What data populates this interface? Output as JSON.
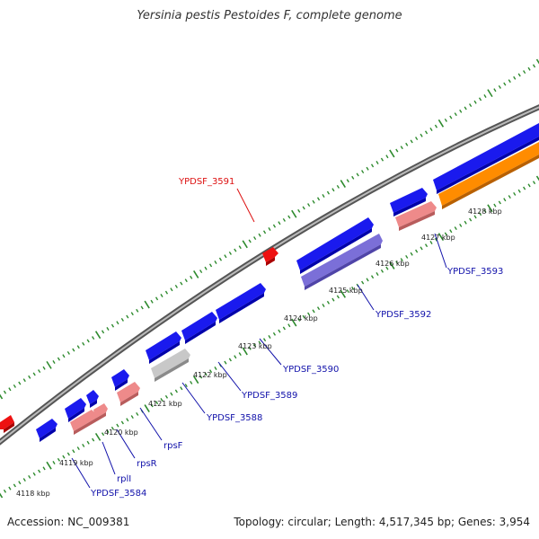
{
  "title": "Yersinia pestis Pestoides F, complete genome",
  "footer": {
    "accession": "Accession: NC_009381",
    "summary": "Topology: circular; Length: 4,517,345 bp; Genes: 3,954"
  },
  "colors": {
    "backbone": "#7a7a7a",
    "cds_forward": "#1a1aee",
    "cds_reverse": "#ee8a8a",
    "rna": "#ff8c00",
    "pseudogene": "#c8c8c8",
    "hypothetical": "#7b6fd8",
    "highlight": "#ee1111",
    "tick": "#2d8a2d",
    "label_blue": "#1111aa",
    "label_red": "#dd1111"
  },
  "ticks": [
    {
      "label": "4118 kbp"
    },
    {
      "label": "4119 kbp"
    },
    {
      "label": "4120 kbp"
    },
    {
      "label": "4121 kbp"
    },
    {
      "label": "4122 kbp"
    },
    {
      "label": "4123 kbp"
    },
    {
      "label": "4124 kbp"
    },
    {
      "label": "4125 kbp"
    },
    {
      "label": "4126 kbp"
    },
    {
      "label": "4127 kbp"
    },
    {
      "label": "4128 kbp"
    }
  ],
  "gene_labels": [
    {
      "name": "YPDSF_3591",
      "color": "red"
    },
    {
      "name": "YPDSF_3593",
      "color": "blue"
    },
    {
      "name": "YPDSF_3592",
      "color": "blue"
    },
    {
      "name": "YPDSF_3590",
      "color": "blue"
    },
    {
      "name": "YPDSF_3589",
      "color": "blue"
    },
    {
      "name": "YPDSF_3588",
      "color": "blue"
    },
    {
      "name": "rpsF",
      "color": "blue"
    },
    {
      "name": "rpsR",
      "color": "blue"
    },
    {
      "name": "rplI",
      "color": "blue"
    },
    {
      "name": "YPDSF_3584",
      "color": "blue"
    }
  ]
}
